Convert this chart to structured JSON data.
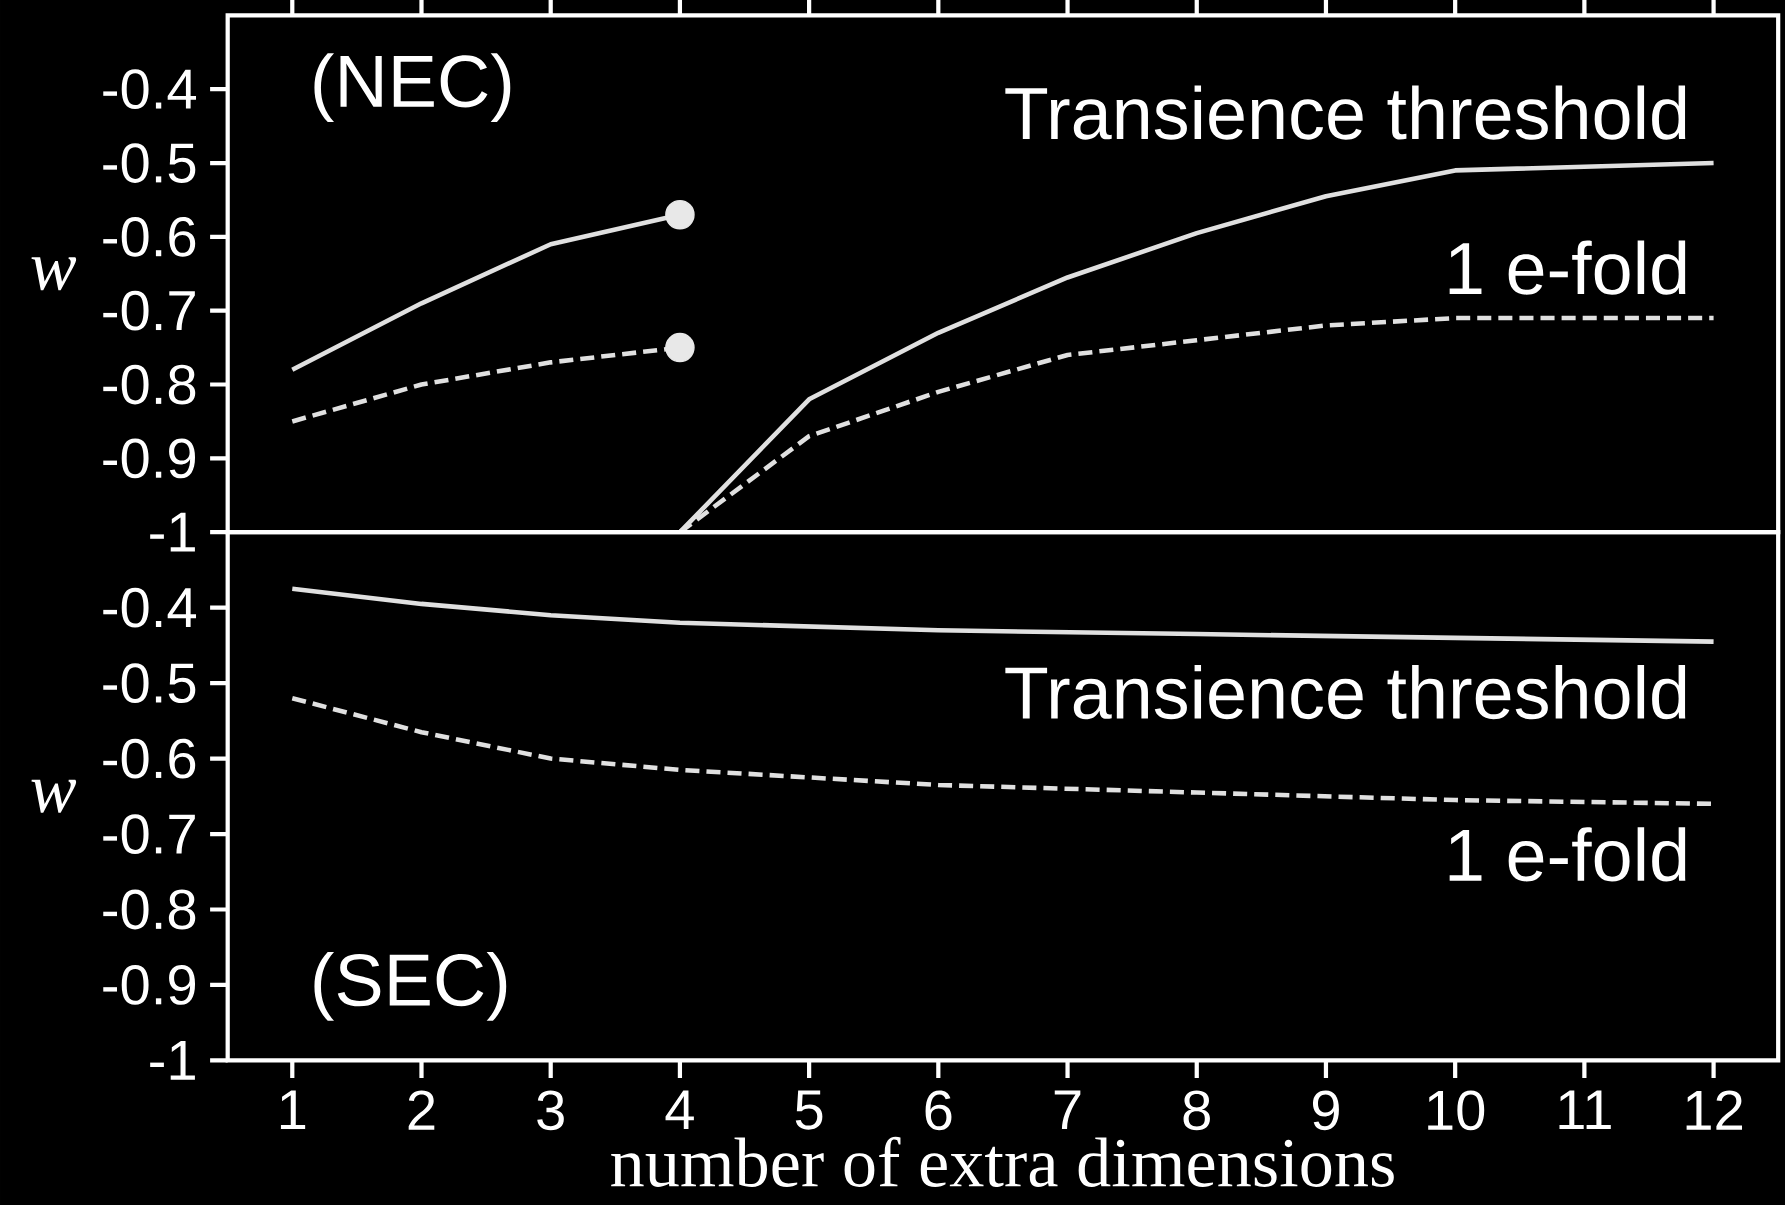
{
  "chart_data": [
    {
      "type": "line",
      "ylabel": "w",
      "annotations": [
        "(NEC)"
      ],
      "tick_labels": "y",
      "xlim": [
        0.5,
        12.5
      ],
      "ylim": [
        -1,
        -0.3
      ],
      "xticks": [
        {
          "value": 1,
          "label": null
        },
        {
          "value": 2,
          "label": null
        },
        {
          "value": 3,
          "label": null
        },
        {
          "value": 4,
          "label": null
        },
        {
          "value": 5,
          "label": null
        },
        {
          "value": 6,
          "label": null
        },
        {
          "value": 7,
          "label": null
        },
        {
          "value": 8,
          "label": null
        },
        {
          "value": 9,
          "label": null
        },
        {
          "value": 10,
          "label": null
        },
        {
          "value": 11,
          "label": null
        },
        {
          "value": 12,
          "label": null
        }
      ],
      "yticks": [
        -1,
        -0.9,
        -0.8,
        -0.7,
        -0.6,
        -0.5,
        -0.4
      ],
      "series": [
        {
          "color": "#e0e0e0",
          "line_style": "solid",
          "x": [
            1,
            2,
            3,
            4
          ],
          "values": [
            -0.78,
            -0.69,
            -0.61,
            -0.57
          ]
        },
        {
          "color": "#e0e0e0",
          "line_style": "dashed",
          "x": [
            1,
            2,
            3,
            4
          ],
          "values": [
            -0.85,
            -0.8,
            -0.77,
            -0.75
          ]
        },
        {
          "name": "Transience threshold",
          "color": "#e0e0e0",
          "line_style": "solid",
          "x": [
            4,
            5,
            6,
            7,
            8,
            9,
            10,
            12
          ],
          "values": [
            -1,
            -0.82,
            -0.73,
            -0.655,
            -0.595,
            -0.545,
            -0.51,
            -0.5
          ]
        },
        {
          "name": "1 e-fold",
          "color": "#e0e0e0",
          "line_style": "dashed",
          "x": [
            4,
            5,
            6,
            7,
            8,
            9,
            10,
            12
          ],
          "values": [
            -1,
            -0.87,
            -0.81,
            -0.76,
            -0.74,
            -0.72,
            -0.71,
            -0.71
          ]
        },
        {
          "type": "scatter",
          "marker": "circle",
          "color": "#e8e8e8",
          "x": [
            4,
            4
          ],
          "values": [
            -0.57,
            -0.75
          ]
        }
      ]
    },
    {
      "type": "line",
      "ylabel": "w",
      "xlabel": "number of extra dimensions",
      "annotations": [
        "(SEC)"
      ],
      "xlim": [
        0.5,
        12.5
      ],
      "ylim": [
        -1,
        -0.3
      ],
      "xticks": [
        1,
        2,
        3,
        4,
        5,
        6,
        7,
        8,
        9,
        10,
        11,
        12
      ],
      "yticks": [
        -1,
        -0.9,
        -0.8,
        -0.7,
        -0.6,
        -0.5,
        -0.4
      ],
      "series": [
        {
          "name": "Transience threshold",
          "color": "#e0e0e0",
          "line_style": "solid",
          "x": [
            1,
            2,
            3,
            4,
            6,
            8,
            10,
            12
          ],
          "values": [
            -0.375,
            -0.395,
            -0.41,
            -0.42,
            -0.43,
            -0.435,
            -0.44,
            -0.445
          ]
        },
        {
          "name": "1 e-fold",
          "color": "#e0e0e0",
          "line_style": "dashed",
          "x": [
            1,
            2,
            3,
            4,
            6,
            8,
            10,
            12
          ],
          "values": [
            -0.52,
            -0.565,
            -0.6,
            -0.615,
            -0.635,
            -0.645,
            -0.655,
            -0.66
          ]
        }
      ]
    }
  ]
}
